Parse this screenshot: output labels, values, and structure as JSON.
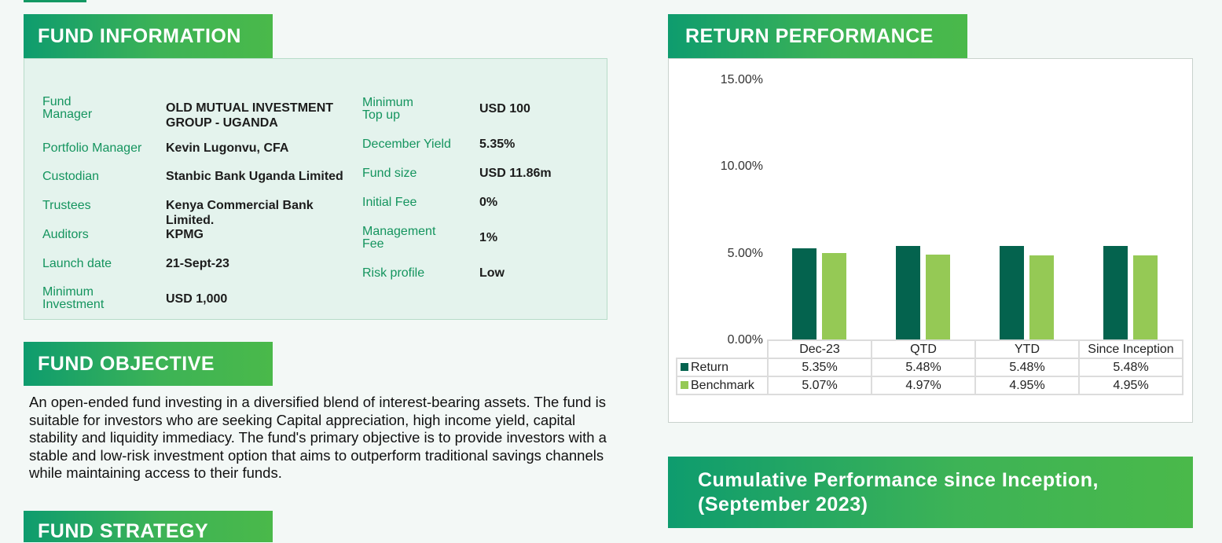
{
  "sections": {
    "fund_information": "FUND INFORMATION",
    "return_performance": "RETURN PERFORMANCE",
    "fund_objective": "FUND OBJECTIVE",
    "fund_strategy": "FUND STRATEGY",
    "cumulative_line1": "Cumulative Performance since Inception,",
    "cumulative_line2": "(September 2023)"
  },
  "fund_info": {
    "fund_manager_l1": "Fund",
    "fund_manager_l2": "Manager",
    "fund_manager_v1": "OLD MUTUAL INVESTMENT",
    "fund_manager_v2": "GROUP - UGANDA",
    "portfolio_manager": "Portfolio Manager",
    "portfolio_manager_v": "Kevin Lugonvu, CFA",
    "custodian": "Custodian",
    "custodian_v": "Stanbic Bank Uganda Limited",
    "trustees": "Trustees",
    "trustees_v1": "Kenya Commercial Bank",
    "trustees_v2": "Limited.",
    "auditors": "Auditors",
    "auditors_v": "KPMG",
    "launch_date": "Launch date",
    "launch_date_v": "21-Sept-23",
    "min_inv_l1": "Minimum",
    "min_inv_l2": "Investment",
    "min_inv_v": "USD 1,000",
    "min_top_l1": "Minimum",
    "min_top_l2": "Top up",
    "min_top_v": "USD 100",
    "dec_yield": "December Yield",
    "dec_yield_v": "5.35%",
    "fund_size": "Fund size",
    "fund_size_v": "USD 11.86m",
    "initial_fee": "Initial Fee",
    "initial_fee_v": "0%",
    "mgmt_fee_l1": "Management",
    "mgmt_fee_l2": "Fee",
    "mgmt_fee_v": "1%",
    "risk_profile": "Risk profile",
    "risk_profile_v": "Low"
  },
  "objective_text": "An open-ended fund investing in a diversified blend of interest-bearing assets. The fund is suitable for investors who are seeking Capital appreciation, high income yield, capital stability and liquidity immediacy. The fund's primary objective is to provide investors with a stable and low-risk investment option that aims to outperform traditional savings channels while maintaining access to their funds.",
  "colors": {
    "return": "#04634e",
    "benchmark": "#95c955",
    "accent": "#14945e"
  },
  "chart_data": {
    "type": "bar",
    "categories": [
      "Dec-23",
      "QTD",
      "YTD",
      "Since Inception"
    ],
    "series": [
      {
        "name": "Return",
        "values": [
          5.35,
          5.48,
          5.48,
          5.48
        ],
        "labels": [
          "5.35%",
          "5.48%",
          "5.48%",
          "5.48%"
        ]
      },
      {
        "name": "Benchmark",
        "values": [
          5.07,
          4.97,
          4.95,
          4.95
        ],
        "labels": [
          "5.07%",
          "4.97%",
          "4.95%",
          "4.95%"
        ]
      }
    ],
    "yticks": [
      "15.00%",
      "10.00%",
      "5.00%",
      "0.00%"
    ],
    "ylim": [
      0,
      15
    ],
    "legend": "data table below chart"
  }
}
